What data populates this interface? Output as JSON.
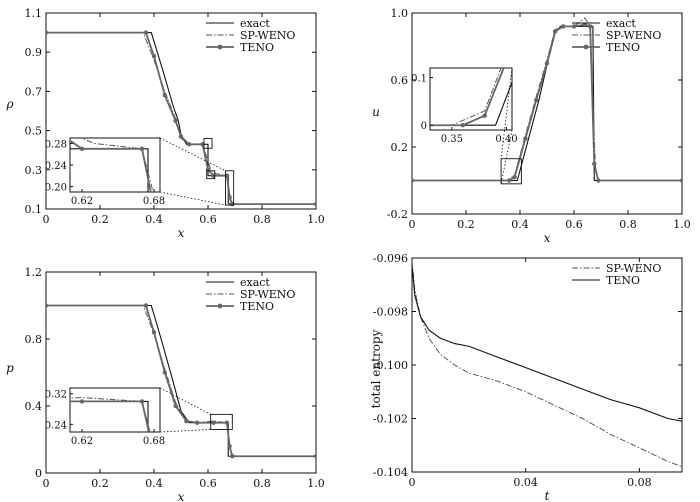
{
  "chart_data": [
    {
      "type": "line",
      "xlabel": "x",
      "ylabel": "ρ",
      "xlim": [
        0,
        1.0
      ],
      "ylim": [
        0.1,
        1.1
      ],
      "x_ticks": [
        "0",
        "0.2",
        "0.4",
        "0.6",
        "0.8",
        "1.0"
      ],
      "y_ticks": [
        "0.1",
        "0.3",
        "0.5",
        "0.7",
        "0.9",
        "1.1"
      ],
      "legend": [
        "exact",
        "SP-WENO",
        "TENO"
      ],
      "legend_position": "top-right",
      "series": [
        {
          "name": "exact",
          "style": "solid",
          "x": [
            0,
            0.39,
            0.43,
            0.47,
            0.49,
            0.5,
            0.52,
            0.59,
            0.6,
            0.6,
            0.675,
            0.675,
            0.68,
            1.0
          ],
          "y": [
            1.0,
            1.0,
            0.82,
            0.63,
            0.55,
            0.48,
            0.43,
            0.43,
            0.43,
            0.27,
            0.27,
            0.13,
            0.125,
            0.125
          ]
        },
        {
          "name": "SP-WENO",
          "style": "dashdot",
          "x": [
            0,
            0.36,
            0.4,
            0.44,
            0.48,
            0.5,
            0.53,
            0.58,
            0.61,
            0.63,
            0.67,
            0.685,
            0.7,
            1.0
          ],
          "y": [
            1.0,
            1.0,
            0.86,
            0.7,
            0.56,
            0.46,
            0.43,
            0.43,
            0.3,
            0.28,
            0.27,
            0.14,
            0.125,
            0.125
          ]
        },
        {
          "name": "TENO",
          "style": "solid-marker",
          "x": [
            0,
            0.37,
            0.4,
            0.44,
            0.48,
            0.5,
            0.53,
            0.58,
            0.6,
            0.62,
            0.67,
            0.68,
            0.69,
            1.0
          ],
          "y": [
            1.0,
            1.0,
            0.88,
            0.68,
            0.55,
            0.47,
            0.43,
            0.43,
            0.3,
            0.27,
            0.27,
            0.16,
            0.125,
            0.125
          ]
        }
      ],
      "inset": {
        "x_ticks": [
          "0.62",
          "0.68"
        ],
        "y_ticks": [
          "0.28",
          "0.24",
          "0.20"
        ],
        "xlim": [
          0.61,
          0.685
        ],
        "ylim": [
          0.19,
          0.29
        ]
      }
    },
    {
      "type": "line",
      "xlabel": "x",
      "ylabel": "u",
      "xlim": [
        0,
        1.0
      ],
      "ylim": [
        -0.2,
        1.0
      ],
      "x_ticks": [
        "0",
        "0.2",
        "0.4",
        "0.6",
        "0.8",
        "1.0"
      ],
      "y_ticks": [
        "-0.2",
        "0.2",
        "0.6",
        "1.0"
      ],
      "legend": [
        "exact",
        "SP-WENO",
        "TENO"
      ],
      "legend_position": "top-right",
      "series": [
        {
          "name": "exact",
          "style": "solid",
          "x": [
            0,
            0.37,
            0.39,
            0.43,
            0.47,
            0.5,
            0.53,
            0.55,
            0.6,
            0.665,
            0.67,
            0.675,
            0.68,
            1.0
          ],
          "y": [
            0,
            0,
            0.0,
            0.24,
            0.48,
            0.69,
            0.88,
            0.92,
            0.92,
            0.92,
            0.92,
            0.0,
            0.0,
            0.0
          ]
        },
        {
          "name": "SP-WENO",
          "style": "dashdot",
          "x": [
            0,
            0.35,
            0.38,
            0.42,
            0.46,
            0.5,
            0.53,
            0.56,
            0.6,
            0.64,
            0.66,
            0.68,
            0.69,
            1.0
          ],
          "y": [
            0,
            0,
            0.03,
            0.27,
            0.5,
            0.72,
            0.9,
            0.92,
            0.92,
            0.97,
            0.92,
            0.05,
            0.0,
            0.0
          ]
        },
        {
          "name": "TENO",
          "style": "solid-marker",
          "x": [
            0,
            0.36,
            0.38,
            0.42,
            0.46,
            0.5,
            0.53,
            0.56,
            0.6,
            0.64,
            0.66,
            0.675,
            0.69,
            1.0
          ],
          "y": [
            0,
            0,
            0.02,
            0.25,
            0.48,
            0.7,
            0.89,
            0.92,
            0.92,
            0.93,
            0.92,
            0.1,
            0.0,
            0.0
          ]
        }
      ],
      "inset": {
        "x_ticks": [
          "0.35",
          "0.40"
        ],
        "y_ticks": [
          "0.1",
          "0"
        ],
        "xlim": [
          0.33,
          0.405
        ],
        "ylim": [
          -0.01,
          0.12
        ]
      }
    },
    {
      "type": "line",
      "xlabel": "x",
      "ylabel": "p",
      "xlim": [
        0,
        1.0
      ],
      "ylim": [
        0,
        1.2
      ],
      "x_ticks": [
        "0",
        "0.2",
        "0.4",
        "0.6",
        "0.8",
        "1.0"
      ],
      "y_ticks": [
        "0",
        "0.4",
        "0.8",
        "1.2"
      ],
      "legend": [
        "exact",
        "SP-WENO",
        "TENO"
      ],
      "legend_position": "top-right",
      "series": [
        {
          "name": "exact",
          "style": "solid",
          "x": [
            0,
            0.39,
            0.43,
            0.47,
            0.5,
            0.53,
            0.6,
            0.675,
            0.675,
            0.68,
            1.0
          ],
          "y": [
            1.0,
            1.0,
            0.78,
            0.55,
            0.37,
            0.3,
            0.3,
            0.3,
            0.1,
            0.1,
            0.1
          ]
        },
        {
          "name": "SP-WENO",
          "style": "dashdot",
          "x": [
            0,
            0.36,
            0.4,
            0.44,
            0.48,
            0.52,
            0.56,
            0.62,
            0.67,
            0.685,
            0.7,
            1.0
          ],
          "y": [
            1.0,
            1.0,
            0.83,
            0.62,
            0.42,
            0.31,
            0.3,
            0.31,
            0.3,
            0.12,
            0.1,
            0.1
          ]
        },
        {
          "name": "TENO",
          "style": "solid-marker",
          "x": [
            0,
            0.37,
            0.4,
            0.44,
            0.48,
            0.52,
            0.56,
            0.62,
            0.67,
            0.68,
            0.69,
            1.0
          ],
          "y": [
            1.0,
            1.0,
            0.84,
            0.6,
            0.4,
            0.31,
            0.3,
            0.3,
            0.3,
            0.16,
            0.1,
            0.1
          ]
        }
      ],
      "inset": {
        "x_ticks": [
          "0.62",
          "0.68"
        ],
        "y_ticks": [
          "0.32",
          "0.24"
        ],
        "xlim": [
          0.61,
          0.685
        ],
        "ylim": [
          0.22,
          0.335
        ]
      }
    },
    {
      "type": "line",
      "xlabel": "t",
      "ylabel": "total entropy",
      "xlim": [
        0,
        0.095
      ],
      "ylim": [
        -0.104,
        -0.096
      ],
      "x_ticks": [
        "0",
        "0.04",
        "0.08"
      ],
      "y_ticks": [
        "-0.096",
        "-0.098",
        "-0.100",
        "-0.102",
        "-0.104"
      ],
      "legend": [
        "SP-WENO",
        "TENO"
      ],
      "legend_position": "top-right",
      "series": [
        {
          "name": "SP-WENO",
          "style": "dashdot",
          "t": [
            0,
            0.001,
            0.003,
            0.006,
            0.01,
            0.015,
            0.02,
            0.03,
            0.04,
            0.05,
            0.06,
            0.07,
            0.08,
            0.09,
            0.095
          ],
          "values": [
            -0.0961,
            -0.0972,
            -0.0982,
            -0.099,
            -0.0996,
            -0.1,
            -0.1003,
            -0.1006,
            -0.101,
            -0.1015,
            -0.102,
            -0.1026,
            -0.1031,
            -0.1036,
            -0.1038
          ]
        },
        {
          "name": "TENO",
          "style": "solid",
          "t": [
            0,
            0.001,
            0.003,
            0.006,
            0.01,
            0.015,
            0.02,
            0.03,
            0.04,
            0.05,
            0.06,
            0.07,
            0.08,
            0.09,
            0.095
          ],
          "values": [
            -0.0963,
            -0.0974,
            -0.0982,
            -0.0987,
            -0.099,
            -0.0992,
            -0.0993,
            -0.0997,
            -0.1001,
            -0.1005,
            -0.1009,
            -0.1013,
            -0.1016,
            -0.102,
            -0.1021
          ]
        }
      ]
    }
  ]
}
